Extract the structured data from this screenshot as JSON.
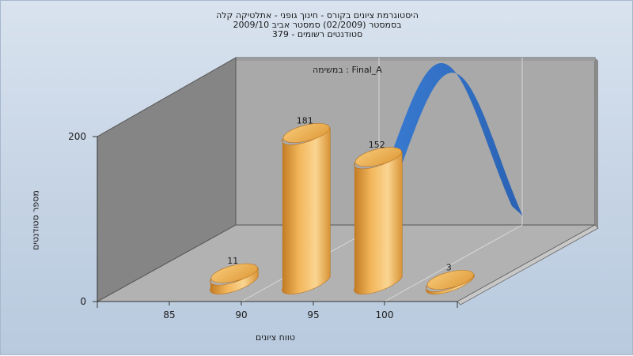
{
  "title": {
    "line1": "היסטוגרמת ציונים בקורס - חינוך גופני - אתלטיקה קלה",
    "line2": "בסמסטר  (02/2009)  סמסטר אביב 2009/10",
    "line3": "סטודנטים רשומים - 379"
  },
  "colors": {
    "bar": "#eca94a",
    "bar_light": "#f9d38c",
    "bar_dark": "#b9731e",
    "curve": "#2f6fc4",
    "back_wall": "#a6a6a6",
    "side_wall": "#878787",
    "floor": "#b4b4b4"
  },
  "chart_data": {
    "type": "bar",
    "title": "היסטוגרמת ציונים בקורס - חינוך גופני - אתלטיקה קלה",
    "subtitle": "בסמסטר  (02/2009)  סמסטר אביב 2009/10 ; סטודנטים רשומים - 379",
    "xlabel": "טווח ציונים",
    "ylabel": "מספר סטודנטים",
    "x_ticks": [
      "85",
      "90",
      "95",
      "100"
    ],
    "y_ticks": [
      "0",
      "200"
    ],
    "ylim": [
      0,
      200
    ],
    "grid": true,
    "bars": [
      {
        "x": 87.5,
        "value": 11,
        "label": "11"
      },
      {
        "x": 92.5,
        "value": 181,
        "label": "181"
      },
      {
        "x": 97.5,
        "value": 152,
        "label": "152"
      },
      {
        "x": 102.5,
        "value": 3,
        "label": "3"
      }
    ],
    "curve_label": "Final_A : במשימה",
    "curve_peak_x": 99.3,
    "curve_peak_value": 265
  }
}
